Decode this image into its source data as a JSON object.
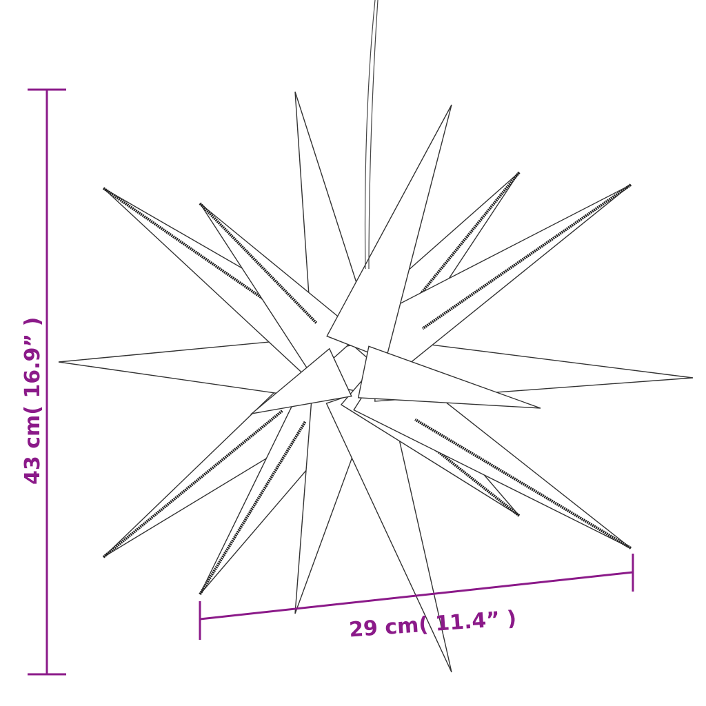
{
  "dimensions": {
    "height_label": "43 cm( 16.9” )",
    "width_label": "29 cm( 11.4” )"
  },
  "colors": {
    "dimension": "#8b1a89",
    "outline": "#333333"
  },
  "product": {
    "icon": "star-lamp-icon"
  }
}
